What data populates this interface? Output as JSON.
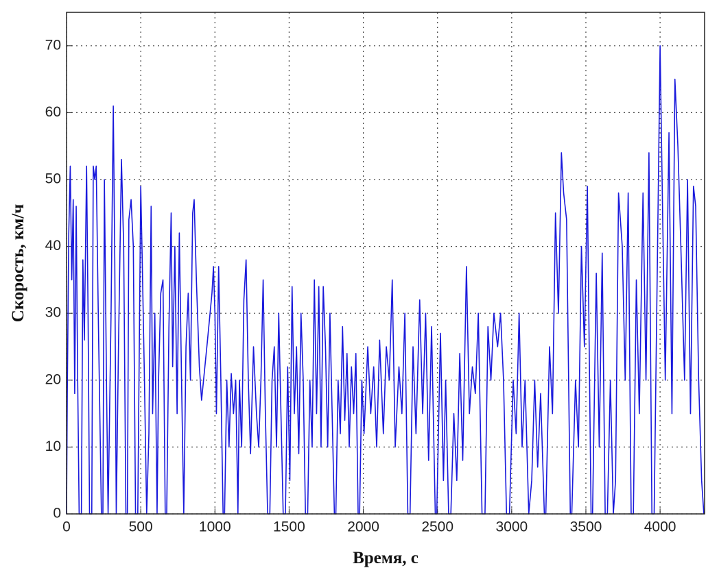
{
  "chart_data": {
    "type": "line",
    "x_label": "Время, с",
    "y_label": "Скорость, км/ч",
    "color": "#1a1adc",
    "grid": true,
    "xlim": [
      0,
      4300
    ],
    "ylim": [
      0,
      75
    ],
    "xticks": [
      0,
      500,
      1000,
      1500,
      2000,
      2500,
      3000,
      3500,
      4000
    ],
    "yticks": [
      0,
      10,
      20,
      30,
      40,
      50,
      60,
      70
    ],
    "x": [
      0,
      5,
      15,
      25,
      35,
      45,
      55,
      65,
      75,
      85,
      100,
      110,
      120,
      135,
      145,
      155,
      170,
      180,
      190,
      200,
      215,
      235,
      245,
      255,
      270,
      280,
      300,
      315,
      325,
      335,
      350,
      370,
      385,
      400,
      410,
      420,
      435,
      450,
      465,
      480,
      500,
      510,
      525,
      540,
      555,
      570,
      580,
      595,
      610,
      620,
      635,
      650,
      665,
      675,
      690,
      705,
      715,
      730,
      745,
      760,
      775,
      790,
      805,
      820,
      835,
      850,
      860,
      875,
      895,
      910,
      950,
      980,
      990,
      1000,
      1010,
      1025,
      1040,
      1055,
      1065,
      1080,
      1095,
      1110,
      1125,
      1140,
      1155,
      1165,
      1180,
      1195,
      1210,
      1225,
      1240,
      1260,
      1280,
      1295,
      1310,
      1325,
      1340,
      1355,
      1370,
      1385,
      1400,
      1415,
      1430,
      1445,
      1460,
      1475,
      1490,
      1505,
      1520,
      1535,
      1550,
      1565,
      1580,
      1595,
      1610,
      1625,
      1640,
      1655,
      1670,
      1685,
      1700,
      1715,
      1730,
      1745,
      1760,
      1775,
      1790,
      1805,
      1815,
      1830,
      1845,
      1860,
      1875,
      1890,
      1905,
      1920,
      1935,
      1950,
      1965,
      1975,
      1990,
      2005,
      2030,
      2050,
      2070,
      2090,
      2110,
      2135,
      2155,
      2175,
      2195,
      2215,
      2240,
      2260,
      2280,
      2300,
      2315,
      2335,
      2355,
      2380,
      2400,
      2420,
      2440,
      2460,
      2485,
      2495,
      2520,
      2540,
      2555,
      2575,
      2590,
      2610,
      2630,
      2650,
      2670,
      2695,
      2715,
      2735,
      2755,
      2775,
      2800,
      2820,
      2840,
      2860,
      2880,
      2905,
      2925,
      2945,
      2965,
      2985,
      3010,
      3030,
      3050,
      3070,
      3090,
      3115,
      3135,
      3155,
      3175,
      3195,
      3220,
      3230,
      3255,
      3275,
      3295,
      3315,
      3335,
      3350,
      3370,
      3395,
      3405,
      3430,
      3450,
      3470,
      3490,
      3510,
      3535,
      3545,
      3570,
      3590,
      3610,
      3630,
      3645,
      3665,
      3685,
      3700,
      3720,
      3745,
      3765,
      3785,
      3805,
      3820,
      3840,
      3860,
      3885,
      3905,
      3925,
      3945,
      3960,
      3990,
      4000,
      4015,
      4035,
      4060,
      4080,
      4100,
      4120,
      4140,
      4165,
      4185,
      4205,
      4225,
      4240,
      4260,
      4280,
      4295
    ],
    "values": [
      0,
      18,
      42,
      52,
      35,
      47,
      18,
      46,
      20,
      0,
      0,
      38,
      26,
      52,
      30,
      0,
      0,
      52,
      50,
      52,
      28,
      0,
      0,
      50,
      18,
      0,
      30,
      61,
      38,
      0,
      25,
      53,
      40,
      0,
      0,
      44,
      47,
      40,
      0,
      0,
      49,
      38,
      20,
      0,
      12,
      46,
      15,
      30,
      0,
      20,
      33,
      35,
      0,
      0,
      28,
      45,
      22,
      40,
      15,
      42,
      20,
      0,
      25,
      33,
      20,
      45,
      47,
      35,
      22,
      17,
      26,
      33,
      37,
      30,
      15,
      37,
      20,
      0,
      0,
      20,
      10,
      21,
      15,
      20,
      0,
      20,
      10,
      32,
      38,
      20,
      9,
      25,
      15,
      10,
      20,
      35,
      15,
      0,
      0,
      20,
      25,
      10,
      30,
      15,
      0,
      0,
      22,
      5,
      34,
      15,
      25,
      9,
      30,
      20,
      0,
      0,
      20,
      10,
      35,
      15,
      34,
      10,
      34,
      25,
      10,
      30,
      15,
      0,
      0,
      20,
      12,
      28,
      14,
      24,
      10,
      22,
      15,
      24,
      0,
      0,
      20,
      12,
      25,
      15,
      22,
      10,
      26,
      12,
      25,
      20,
      35,
      10,
      22,
      15,
      30,
      0,
      0,
      25,
      12,
      32,
      15,
      30,
      8,
      28,
      0,
      0,
      27,
      5,
      20,
      0,
      0,
      15,
      5,
      24,
      8,
      37,
      15,
      22,
      18,
      30,
      0,
      0,
      28,
      20,
      30,
      25,
      30,
      20,
      0,
      0,
      20,
      12,
      30,
      10,
      20,
      0,
      5,
      20,
      7,
      18,
      0,
      0,
      25,
      15,
      45,
      30,
      54,
      48,
      44,
      0,
      0,
      20,
      10,
      40,
      25,
      49,
      0,
      0,
      36,
      10,
      39,
      0,
      0,
      20,
      0,
      5,
      48,
      40,
      20,
      48,
      0,
      0,
      35,
      15,
      48,
      20,
      54,
      0,
      0,
      52,
      70,
      48,
      20,
      57,
      15,
      65,
      55,
      40,
      20,
      50,
      15,
      49,
      46,
      20,
      5,
      0
    ]
  }
}
